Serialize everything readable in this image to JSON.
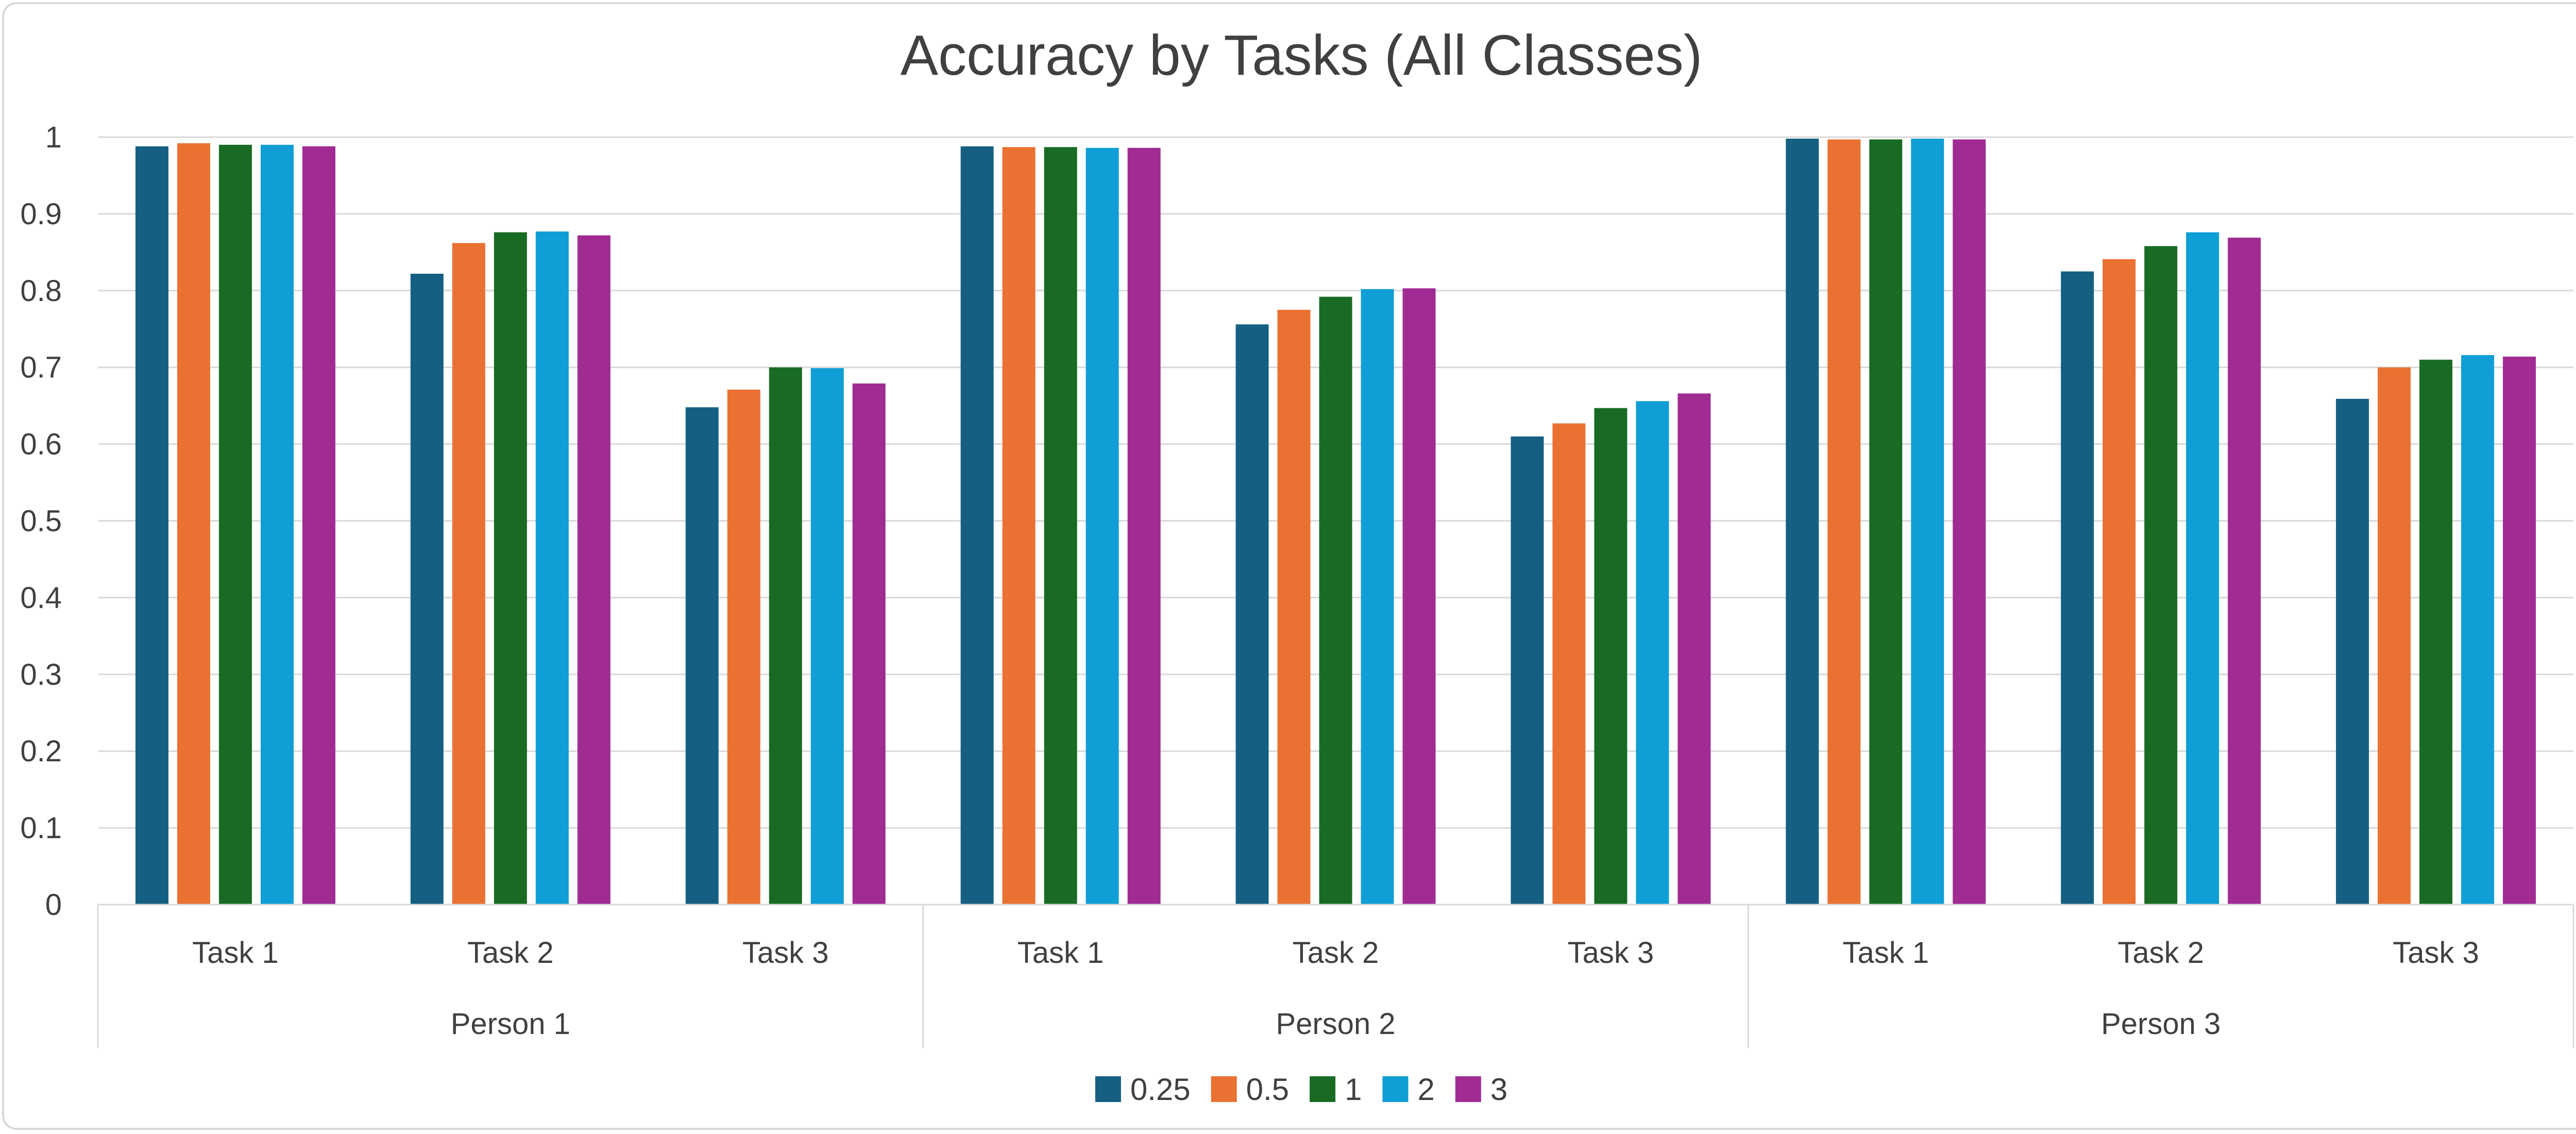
{
  "chart_data": {
    "type": "bar",
    "title": "Accuracy by Tasks (All Classes)",
    "xlabel": "",
    "ylabel": "",
    "ylim": [
      0,
      1
    ],
    "yticks": [
      "0",
      "0.1",
      "0.2",
      "0.3",
      "0.4",
      "0.5",
      "0.6",
      "0.7",
      "0.8",
      "0.9",
      "1"
    ],
    "grid": true,
    "legend_position": "bottom",
    "groups": [
      "Person 1",
      "Person 2",
      "Person 3"
    ],
    "categories": [
      "Task 1",
      "Task 2",
      "Task 3",
      "Task 1",
      "Task 2",
      "Task 3",
      "Task 1",
      "Task 2",
      "Task 3"
    ],
    "series": [
      {
        "name": "0.25",
        "color": "#156082",
        "values": [
          0.988,
          0.822,
          0.648,
          0.988,
          0.756,
          0.61,
          0.998,
          0.825,
          0.659
        ]
      },
      {
        "name": "0.5",
        "color": "#e97132",
        "values": [
          0.992,
          0.862,
          0.671,
          0.987,
          0.775,
          0.627,
          0.997,
          0.841,
          0.7
        ]
      },
      {
        "name": "1",
        "color": "#196b24",
        "values": [
          0.99,
          0.876,
          0.7,
          0.987,
          0.792,
          0.647,
          0.997,
          0.858,
          0.71
        ]
      },
      {
        "name": "2",
        "color": "#0f9ed5",
        "values": [
          0.99,
          0.877,
          0.699,
          0.986,
          0.802,
          0.656,
          0.998,
          0.876,
          0.716
        ]
      },
      {
        "name": "3",
        "color": "#a02b93",
        "values": [
          0.988,
          0.872,
          0.679,
          0.986,
          0.803,
          0.666,
          0.997,
          0.869,
          0.714
        ]
      }
    ]
  }
}
